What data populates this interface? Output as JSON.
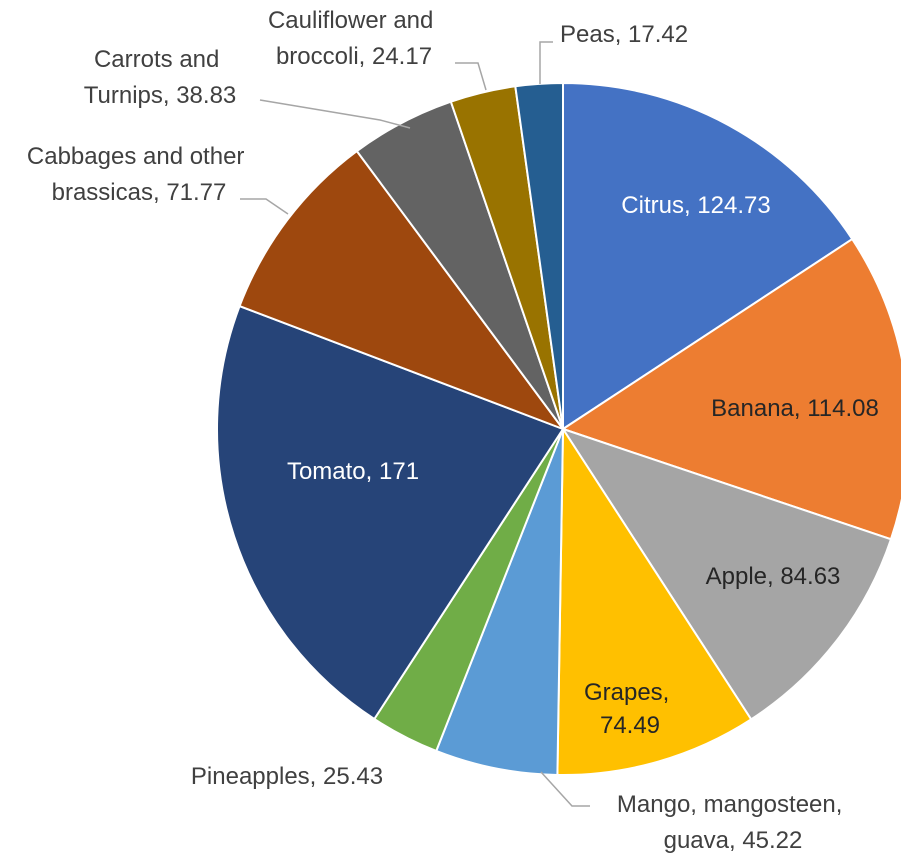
{
  "chart_data": {
    "type": "pie",
    "title": "",
    "start_angle_deg": 0,
    "direction": "clockwise",
    "slices": [
      {
        "label": "Citrus",
        "value": 124.73,
        "display": "Citrus, 124.73",
        "color": "#4472c4",
        "text_color": "#ffffff"
      },
      {
        "label": "Banana",
        "value": 114.08,
        "display": "Banana, 114.08",
        "color": "#ed7d31",
        "text_color": "#262626"
      },
      {
        "label": "Apple",
        "value": 84.63,
        "display": "Apple, 84.63",
        "color": "#a5a5a5",
        "text_color": "#262626"
      },
      {
        "label": "Grapes",
        "value": 74.49,
        "display": "Grapes, 74.49",
        "display_lines": [
          "Grapes,",
          "74.49"
        ],
        "color": "#ffc000",
        "text_color": "#262626"
      },
      {
        "label": "Mango, mangosteen, guava",
        "value": 45.22,
        "display": "Mango, mangosteen, guava, 45.22",
        "display_lines": [
          "Mango, mangosteen,",
          "guava, 45.22"
        ],
        "color": "#5b9bd5",
        "text_color": "#404040"
      },
      {
        "label": "Pineapples",
        "value": 25.43,
        "display": "Pineapples, 25.43",
        "color": "#70ad47",
        "text_color": "#404040"
      },
      {
        "label": "Tomato",
        "value": 171,
        "display": "Tomato, 171",
        "color": "#264478",
        "text_color": "#ffffff"
      },
      {
        "label": "Cabbages and other brassicas",
        "value": 71.77,
        "display": "Cabbages and other brassicas, 71.77",
        "display_lines": [
          "Cabbages and other",
          "brassicas, 71.77"
        ],
        "color": "#9e480e",
        "text_color": "#404040"
      },
      {
        "label": "Carrots and Turnips",
        "value": 38.83,
        "display": "Carrots and Turnips, 38.83",
        "display_lines": [
          "Carrots and",
          "Turnips, 38.83"
        ],
        "color": "#636363",
        "text_color": "#404040"
      },
      {
        "label": "Cauliflower and broccoli",
        "value": 24.17,
        "display": "Cauliflower and broccoli, 24.17",
        "display_lines": [
          "Cauliflower and",
          "broccoli, 24.17"
        ],
        "color": "#997300",
        "text_color": "#404040"
      },
      {
        "label": "Peas",
        "value": 17.42,
        "display": "Peas, 17.42",
        "color": "#255e91",
        "text_color": "#404040"
      }
    ]
  }
}
